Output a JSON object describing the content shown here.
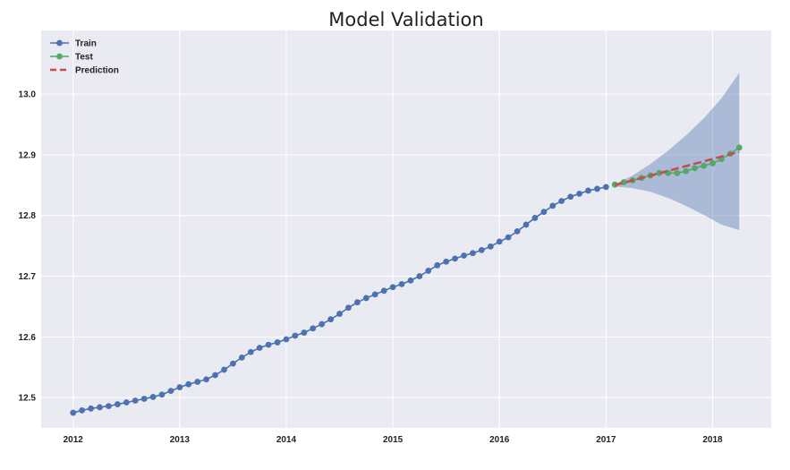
{
  "chart_data": {
    "type": "line",
    "title": "Model Validation",
    "xlabel": "",
    "ylabel": "",
    "xlim": [
      2011.7,
      2018.55
    ],
    "ylim": [
      12.45,
      13.105
    ],
    "x_ticks": [
      2012,
      2013,
      2014,
      2015,
      2016,
      2017,
      2018
    ],
    "x_tick_labels": [
      "2012",
      "2013",
      "2014",
      "2015",
      "2016",
      "2017",
      "2018"
    ],
    "y_ticks": [
      12.5,
      12.6,
      12.7,
      12.8,
      12.9,
      13.0
    ],
    "y_tick_labels": [
      "12.5",
      "12.6",
      "12.7",
      "12.8",
      "12.9",
      "13.0"
    ],
    "grid": true,
    "legend_position": "top-left",
    "legend": [
      "Train",
      "Test",
      "Prediction"
    ],
    "series": [
      {
        "name": "Train",
        "color": "#4c72b0",
        "style": "line-markers",
        "x": [
          2012.0,
          2012.083,
          2012.167,
          2012.25,
          2012.333,
          2012.417,
          2012.5,
          2012.583,
          2012.667,
          2012.75,
          2012.833,
          2012.917,
          2013.0,
          2013.083,
          2013.167,
          2013.25,
          2013.333,
          2013.417,
          2013.5,
          2013.583,
          2013.667,
          2013.75,
          2013.833,
          2013.917,
          2014.0,
          2014.083,
          2014.167,
          2014.25,
          2014.333,
          2014.417,
          2014.5,
          2014.583,
          2014.667,
          2014.75,
          2014.833,
          2014.917,
          2015.0,
          2015.083,
          2015.167,
          2015.25,
          2015.333,
          2015.417,
          2015.5,
          2015.583,
          2015.667,
          2015.75,
          2015.833,
          2015.917,
          2016.0,
          2016.083,
          2016.167,
          2016.25,
          2016.333,
          2016.417,
          2016.5,
          2016.583,
          2016.667,
          2016.75,
          2016.833,
          2016.917,
          2017.0
        ],
        "values": [
          12.475,
          12.479,
          12.482,
          12.484,
          12.486,
          12.489,
          12.492,
          12.495,
          12.498,
          12.501,
          12.505,
          12.511,
          12.517,
          12.522,
          12.526,
          12.53,
          12.537,
          12.546,
          12.556,
          12.566,
          12.575,
          12.582,
          12.587,
          12.591,
          12.596,
          12.602,
          12.607,
          12.614,
          12.621,
          12.629,
          12.638,
          12.648,
          12.657,
          12.664,
          12.67,
          12.676,
          12.682,
          12.687,
          12.693,
          12.7,
          12.709,
          12.718,
          12.724,
          12.729,
          12.734,
          12.738,
          12.743,
          12.749,
          12.757,
          12.764,
          12.774,
          12.785,
          12.796,
          12.806,
          12.816,
          12.824,
          12.831,
          12.836,
          12.841,
          12.844,
          12.847
        ]
      },
      {
        "name": "Test",
        "color": "#55a868",
        "style": "line-markers",
        "x": [
          2017.083,
          2017.167,
          2017.25,
          2017.333,
          2017.417,
          2017.5,
          2017.583,
          2017.667,
          2017.75,
          2017.833,
          2017.917,
          2018.0,
          2018.083,
          2018.167,
          2018.25
        ],
        "values": [
          12.851,
          12.855,
          12.858,
          12.862,
          12.866,
          12.87,
          12.87,
          12.87,
          12.873,
          12.878,
          12.882,
          12.886,
          12.893,
          12.902,
          12.912
        ]
      },
      {
        "name": "Prediction",
        "color": "#c44e52",
        "style": "dashed",
        "x": [
          2017.083,
          2018.25
        ],
        "values": [
          12.85,
          12.905
        ]
      }
    ],
    "confidence_band": {
      "color": "#4c72b0",
      "x": [
        2017.083,
        2017.25,
        2017.417,
        2017.583,
        2017.75,
        2017.917,
        2018.083,
        2018.25
      ],
      "upper": [
        12.852,
        12.866,
        12.885,
        12.907,
        12.932,
        12.96,
        12.993,
        13.035
      ],
      "lower": [
        12.848,
        12.845,
        12.839,
        12.829,
        12.816,
        12.801,
        12.785,
        12.776
      ]
    }
  }
}
